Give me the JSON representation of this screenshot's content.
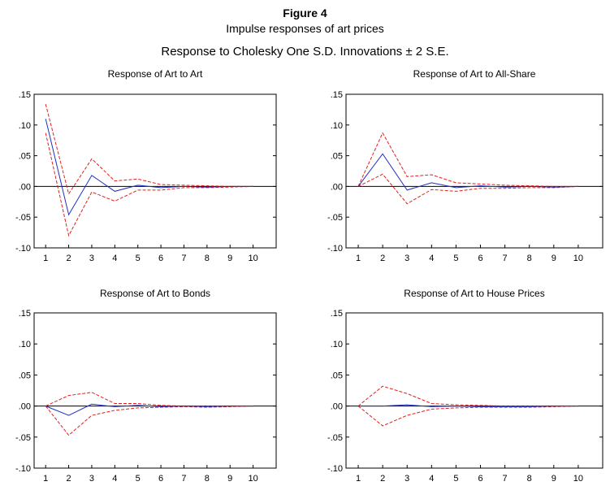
{
  "figure": {
    "title": "Figure 4",
    "subtitle": "Impulse responses of art prices",
    "caption": "Response to Cholesky One S.D. Innovations ± 2 S.E."
  },
  "colors": {
    "response": "#1f2fbf",
    "band": "#e0201c",
    "axis": "#000000"
  },
  "chart_data": [
    {
      "type": "line",
      "title": "Response of Art to Art",
      "x": [
        1,
        2,
        3,
        4,
        5,
        6,
        7,
        8,
        9,
        10
      ],
      "xticks": [
        "1",
        "2",
        "3",
        "4",
        "5",
        "6",
        "7",
        "8",
        "9",
        "10"
      ],
      "ylim": [
        -0.1,
        0.15
      ],
      "yticks": [
        ".15",
        ".10",
        ".05",
        ".00",
        "-.05",
        "-.10"
      ],
      "grid": false,
      "series": [
        {
          "style": "solid",
          "color": "#1f2fbf",
          "values": [
            0.11,
            -0.046,
            0.018,
            -0.008,
            0.002,
            -0.002,
            0.0,
            -0.001,
            0.0,
            0.0
          ]
        },
        {
          "style": "dashed",
          "color": "#e0201c",
          "values": [
            0.134,
            -0.012,
            0.045,
            0.009,
            0.012,
            0.003,
            0.002,
            0.001,
            0.0,
            0.0
          ]
        },
        {
          "style": "dashed",
          "color": "#e0201c",
          "values": [
            0.087,
            -0.08,
            -0.009,
            -0.024,
            -0.006,
            -0.006,
            -0.002,
            -0.002,
            -0.001,
            0.0
          ]
        }
      ]
    },
    {
      "type": "line",
      "title": "Response of Art to All-Share",
      "x": [
        1,
        2,
        3,
        4,
        5,
        6,
        7,
        8,
        9,
        10
      ],
      "xticks": [
        "1",
        "2",
        "3",
        "4",
        "5",
        "6",
        "7",
        "8",
        "9",
        "10"
      ],
      "ylim": [
        -0.1,
        0.15
      ],
      "yticks": [
        ".15",
        ".10",
        ".05",
        ".00",
        "-.05",
        "-.10"
      ],
      "grid": false,
      "series": [
        {
          "style": "solid",
          "color": "#1f2fbf",
          "values": [
            0.0,
            0.053,
            -0.006,
            0.006,
            -0.002,
            0.001,
            -0.001,
            0.0,
            -0.001,
            0.0
          ]
        },
        {
          "style": "dashed",
          "color": "#e0201c",
          "values": [
            0.0,
            0.087,
            0.016,
            0.019,
            0.006,
            0.004,
            0.002,
            0.001,
            0.0,
            0.0
          ]
        },
        {
          "style": "dashed",
          "color": "#e0201c",
          "values": [
            0.0,
            0.02,
            -0.028,
            -0.005,
            -0.008,
            -0.003,
            -0.003,
            -0.002,
            -0.002,
            0.0
          ]
        }
      ]
    },
    {
      "type": "line",
      "title": "Response of Art to Bonds",
      "x": [
        1,
        2,
        3,
        4,
        5,
        6,
        7,
        8,
        9,
        10
      ],
      "xticks": [
        "1",
        "2",
        "3",
        "4",
        "5",
        "6",
        "7",
        "8",
        "9",
        "10"
      ],
      "ylim": [
        -0.1,
        0.15
      ],
      "yticks": [
        ".15",
        ".10",
        ".05",
        ".00",
        "-.05",
        "-.10"
      ],
      "grid": false,
      "series": [
        {
          "style": "solid",
          "color": "#1f2fbf",
          "values": [
            0.0,
            -0.015,
            0.003,
            -0.001,
            0.001,
            -0.001,
            0.0,
            -0.001,
            0.0,
            0.0
          ]
        },
        {
          "style": "dashed",
          "color": "#e0201c",
          "values": [
            0.0,
            0.017,
            0.022,
            0.004,
            0.004,
            0.001,
            0.0,
            0.0,
            0.0,
            0.0
          ]
        },
        {
          "style": "dashed",
          "color": "#e0201c",
          "values": [
            0.0,
            -0.047,
            -0.015,
            -0.007,
            -0.003,
            -0.002,
            -0.001,
            -0.002,
            -0.001,
            0.0
          ]
        }
      ]
    },
    {
      "type": "line",
      "title": "Response of Art to House Prices",
      "x": [
        1,
        2,
        3,
        4,
        5,
        6,
        7,
        8,
        9,
        10
      ],
      "xticks": [
        "1",
        "2",
        "3",
        "4",
        "5",
        "6",
        "7",
        "8",
        "9",
        "10"
      ],
      "ylim": [
        -0.1,
        0.15
      ],
      "yticks": [
        ".15",
        ".10",
        ".05",
        ".00",
        "-.05",
        "-.10"
      ],
      "grid": false,
      "series": [
        {
          "style": "solid",
          "color": "#1f2fbf",
          "values": [
            0.0,
            0.0,
            0.002,
            -0.001,
            0.0,
            -0.001,
            -0.001,
            -0.001,
            0.0,
            0.0
          ]
        },
        {
          "style": "dashed",
          "color": "#e0201c",
          "values": [
            0.0,
            0.032,
            0.02,
            0.004,
            0.002,
            0.001,
            0.0,
            0.0,
            0.0,
            0.0
          ]
        },
        {
          "style": "dashed",
          "color": "#e0201c",
          "values": [
            0.0,
            -0.032,
            -0.015,
            -0.005,
            -0.003,
            -0.002,
            -0.002,
            -0.002,
            -0.001,
            0.0
          ]
        }
      ]
    }
  ]
}
